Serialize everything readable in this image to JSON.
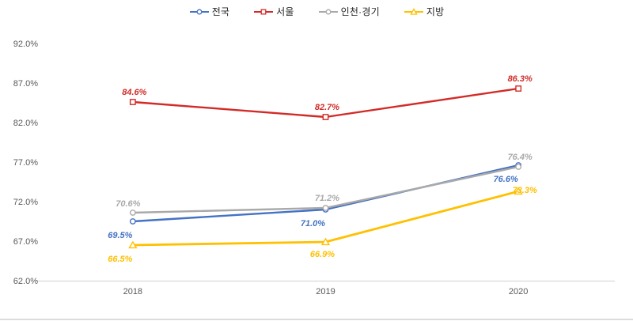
{
  "page": {
    "background": "#ffffff"
  },
  "chart_data": {
    "type": "line",
    "title": "",
    "xlabel": "",
    "ylabel": "",
    "categories": [
      "2018",
      "2019",
      "2020"
    ],
    "ylim": [
      62,
      92
    ],
    "ytick_step": 5,
    "ytick_labels": [
      "92.0%",
      "87.0%",
      "82.0%",
      "77.0%",
      "72.0%",
      "67.0%",
      "62.0%"
    ],
    "grid": false,
    "legend_position": "top",
    "axis_color": "#d9d9d9",
    "tick_text_color": "#595959",
    "series": [
      {
        "id": "nationwide",
        "name": "전국",
        "color": "#4472c4",
        "marker": "circle",
        "values": [
          69.5,
          71.0,
          76.6
        ],
        "labels": [
          "69.5%",
          "71.0%",
          "76.6%"
        ],
        "label_positions": [
          "below-left",
          "below-left",
          "below-left"
        ]
      },
      {
        "id": "seoul",
        "name": "서울",
        "color": "#d22b27",
        "marker": "square",
        "values": [
          84.6,
          82.7,
          86.3
        ],
        "labels": [
          "84.6%",
          "82.7%",
          "86.3%"
        ],
        "label_positions": [
          "above",
          "above",
          "above"
        ]
      },
      {
        "id": "incheon-gyeonggi",
        "name": "인천·경기",
        "color": "#a9a9a9",
        "marker": "circle",
        "values": [
          70.6,
          71.2,
          76.4
        ],
        "labels": [
          "70.6%",
          "71.2%",
          "76.4%"
        ],
        "label_positions": [
          "above-left",
          "above",
          "above"
        ]
      },
      {
        "id": "regions",
        "name": "지방",
        "color": "#ffc000",
        "marker": "triangle",
        "values": [
          66.5,
          66.9,
          73.3
        ],
        "labels": [
          "66.5%",
          "66.9%",
          "73.3%"
        ],
        "label_positions": [
          "below-left",
          "below",
          "right-overlap"
        ]
      }
    ]
  }
}
